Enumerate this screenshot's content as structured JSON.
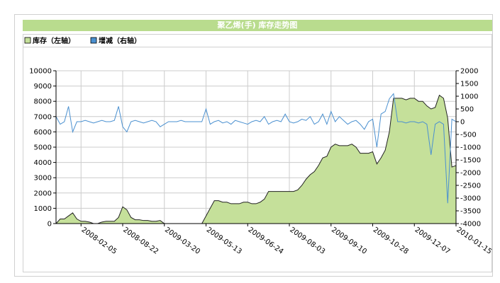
{
  "chart_data": {
    "type": "combo",
    "title": "聚乙烯(手) 库存走势图",
    "categories": [
      null,
      null,
      null,
      null,
      null,
      null,
      "2008-02-05",
      null,
      null,
      null,
      null,
      null,
      null,
      null,
      null,
      null,
      "2008-08-22",
      null,
      null,
      null,
      null,
      null,
      null,
      null,
      null,
      null,
      "2009-03-20",
      null,
      null,
      null,
      null,
      null,
      null,
      null,
      null,
      null,
      "2009-05-13",
      null,
      null,
      null,
      null,
      null,
      null,
      null,
      null,
      null,
      "2009-06-24",
      null,
      null,
      null,
      null,
      null,
      null,
      null,
      null,
      null,
      "2009-08-03",
      null,
      null,
      null,
      null,
      null,
      null,
      null,
      null,
      null,
      "2009-09-10",
      null,
      null,
      null,
      null,
      null,
      null,
      null,
      null,
      null,
      "2009-10-28",
      null,
      null,
      null,
      null,
      null,
      null,
      null,
      null,
      null,
      "2009-12-07",
      null,
      null,
      null,
      null,
      null,
      null,
      null,
      null,
      null,
      "2010-01-15"
    ],
    "series": [
      {
        "name": "库存（左轴）",
        "type": "area",
        "color": "#c5e09a",
        "axis": "y",
        "values": [
          0,
          300,
          300,
          500,
          700,
          300,
          150,
          150,
          100,
          0,
          0,
          100,
          150,
          150,
          150,
          400,
          1100,
          900,
          400,
          250,
          250,
          200,
          200,
          150,
          150,
          200,
          0,
          0,
          0,
          0,
          0,
          0,
          0,
          0,
          0,
          0,
          500,
          1000,
          1500,
          1500,
          1400,
          1400,
          1300,
          1300,
          1300,
          1400,
          1400,
          1300,
          1300,
          1400,
          1600,
          2100,
          2100,
          2100,
          2100,
          2100,
          2100,
          2100,
          2200,
          2500,
          2900,
          3200,
          3400,
          3800,
          4300,
          4400,
          5000,
          5200,
          5100,
          5100,
          5100,
          5200,
          5000,
          4600,
          4600,
          4600,
          4700,
          3900,
          4300,
          4800,
          6000,
          8200,
          8200,
          8200,
          8100,
          8200,
          8200,
          8000,
          8000,
          7700,
          7500,
          7600,
          8400,
          8200,
          6900,
          3700,
          3800
        ]
      },
      {
        "name": "增减（右轴）",
        "type": "line",
        "color": "#4a90d0",
        "axis": "y2",
        "values": [
          200,
          -100,
          0,
          600,
          -400,
          0,
          0,
          50,
          0,
          -50,
          0,
          50,
          0,
          0,
          50,
          600,
          -200,
          -400,
          0,
          50,
          0,
          -50,
          0,
          50,
          0,
          -200,
          -100,
          0,
          0,
          0,
          50,
          0,
          0,
          0,
          0,
          0,
          500,
          -100,
          0,
          50,
          -50,
          0,
          -100,
          50,
          0,
          -50,
          -100,
          0,
          50,
          0,
          200,
          -100,
          0,
          50,
          0,
          300,
          0,
          -50,
          0,
          100,
          50,
          200,
          -100,
          0,
          300,
          -100,
          400,
          0,
          200,
          50,
          -100,
          0,
          50,
          -100,
          -300,
          0,
          100,
          -1000,
          300,
          400,
          900,
          1100,
          0,
          0,
          -50,
          0,
          0,
          -50,
          0,
          -100,
          -1300,
          -100,
          0,
          -100,
          -3200,
          100,
          0
        ]
      }
    ],
    "ylim": [
      0,
      10000
    ],
    "yticks": [
      0,
      1000,
      2000,
      3000,
      4000,
      5000,
      6000,
      7000,
      8000,
      9000,
      10000
    ],
    "y2lim": [
      -4000,
      2000
    ],
    "y2ticks": [
      -4000,
      -3500,
      -3000,
      -2500,
      -2000,
      -1500,
      -1000,
      -500,
      0,
      500,
      1000,
      1500,
      2000
    ],
    "grid": true
  }
}
